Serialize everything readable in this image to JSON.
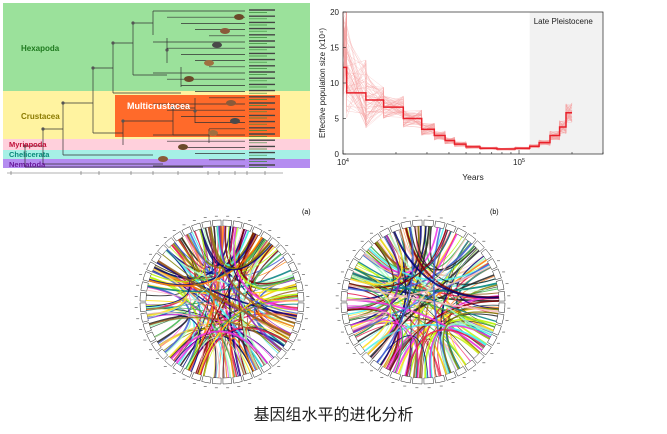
{
  "phylogeny": {
    "clades": [
      {
        "label": "Hexapoda",
        "color": "#1f7a1f",
        "bg": "#9be19b"
      },
      {
        "label": "Crustacea",
        "color": "#8a7a00",
        "bg": "#fff3a0"
      },
      {
        "label": "Multicrustacea",
        "color": "#ffffff",
        "bg": "#ff6a2a"
      },
      {
        "label": "Myriapoda",
        "color": "#c0103a",
        "bg": "#ffd0dc"
      },
      {
        "label": "Chelicerata",
        "color": "#0a8a7a",
        "bg": "#a6f0e6"
      },
      {
        "label": "Nematoda",
        "color": "#6a1a9a",
        "bg": "#b48cf0"
      }
    ]
  },
  "psmc": {
    "chart_data": {
      "type": "line",
      "xlabel": "Years",
      "ylabel": "Effective population size (x10⁴)",
      "xscale": "log",
      "xlim": [
        10000,
        300000
      ],
      "ylim": [
        0,
        20
      ],
      "yticks": [
        0,
        5,
        10,
        15,
        20
      ],
      "xticks": [
        {
          "value": 10000,
          "base": "10",
          "exp": "4"
        },
        {
          "value": 100000,
          "base": "10",
          "exp": "5"
        }
      ],
      "annotation": "Late Pleistocene",
      "shaded_region": [
        115000,
        300000
      ],
      "series": [
        {
          "x": [
            10000,
            10500,
            10500,
            13500,
            13500,
            17000,
            17000,
            22000,
            22000,
            28000,
            28000,
            33000,
            33000,
            38000,
            38000,
            43000,
            43000,
            50000,
            50000,
            60000,
            60000,
            75000,
            75000,
            95000,
            95000,
            115000,
            115000,
            130000,
            130000,
            150000,
            150000,
            170000,
            170000,
            185000,
            185000,
            200000
          ],
          "y": [
            12.2,
            12.2,
            8.6,
            8.6,
            7.6,
            7.6,
            6.6,
            6.6,
            5.0,
            5.0,
            3.5,
            3.5,
            2.6,
            2.6,
            1.9,
            1.9,
            1.4,
            1.4,
            1.0,
            1.0,
            0.8,
            0.8,
            0.7,
            0.7,
            0.8,
            0.8,
            1.1,
            1.1,
            1.6,
            1.6,
            2.6,
            2.6,
            3.8,
            3.8,
            5.8,
            5.8
          ],
          "color": "#e8202a"
        }
      ]
    }
  },
  "circos": {
    "panels": [
      {
        "label": "(a)"
      },
      {
        "label": "(b)"
      }
    ]
  },
  "caption": "基因组水平的进化分析"
}
